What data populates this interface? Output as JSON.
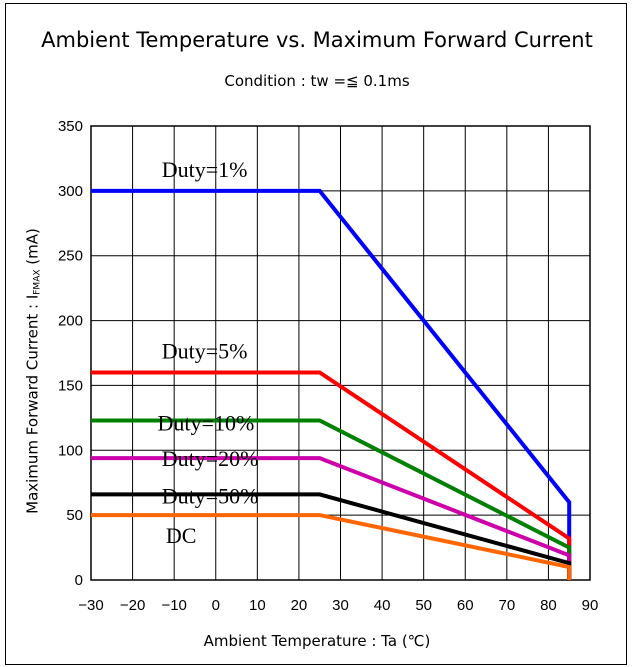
{
  "title": "Ambient Temperature vs. Maximum Forward Current",
  "subtitle": "Condition : tw =≦ 0.1ms",
  "xlabel": "Ambient Temperature : Ta (℃)",
  "ylabel_main": "Maximum Forward Current : I",
  "ylabel_sub": "FMAX",
  "ylabel_unit": " (mA)",
  "chart_data": {
    "type": "line",
    "title": "Ambient Temperature vs. Maximum Forward Current",
    "subtitle": "Condition : tw =≦ 0.1ms",
    "xlabel": "Ambient Temperature : Ta (℃)",
    "ylabel": "Maximum Forward Current : IFMAX (mA)",
    "xlim": [
      -30,
      90
    ],
    "ylim": [
      0,
      350
    ],
    "x_ticks": [
      -30,
      -20,
      -10,
      0,
      10,
      20,
      30,
      40,
      50,
      60,
      70,
      80,
      90
    ],
    "x_tick_labels": [
      "−30",
      "−20",
      "−10",
      "0",
      "10",
      "20",
      "30",
      "40",
      "50",
      "60",
      "70",
      "80",
      "90"
    ],
    "y_ticks": [
      0,
      50,
      100,
      150,
      200,
      250,
      300,
      350
    ],
    "y_tick_labels": [
      "0",
      "50",
      "100",
      "150",
      "200",
      "250",
      "300",
      "350"
    ],
    "grid": true,
    "legend": "none (labels placed on chart)",
    "series": [
      {
        "name": "Duty=1%",
        "color": "#0000ff",
        "points": [
          [
            -30,
            300
          ],
          [
            25,
            300
          ],
          [
            85,
            60
          ],
          [
            85,
            0
          ]
        ]
      },
      {
        "name": "Duty=5%",
        "color": "#ff0000",
        "points": [
          [
            -30,
            160
          ],
          [
            25,
            160
          ],
          [
            85,
            32
          ],
          [
            85,
            0
          ]
        ]
      },
      {
        "name": "Duty=10%",
        "color": "#008000",
        "points": [
          [
            -30,
            123
          ],
          [
            25,
            123
          ],
          [
            85,
            25
          ],
          [
            85,
            0
          ]
        ]
      },
      {
        "name": "Duty=20%",
        "color": "#cc00aa",
        "points": [
          [
            -30,
            94
          ],
          [
            25,
            94
          ],
          [
            85,
            19
          ],
          [
            85,
            0
          ]
        ]
      },
      {
        "name": "Duty=50%",
        "color": "#000000",
        "points": [
          [
            -30,
            66
          ],
          [
            25,
            66
          ],
          [
            85,
            13
          ],
          [
            85,
            0
          ]
        ]
      },
      {
        "name": "DC",
        "color": "#ff6600",
        "points": [
          [
            -30,
            50
          ],
          [
            25,
            50
          ],
          [
            85,
            10
          ],
          [
            85,
            0
          ]
        ]
      }
    ]
  }
}
